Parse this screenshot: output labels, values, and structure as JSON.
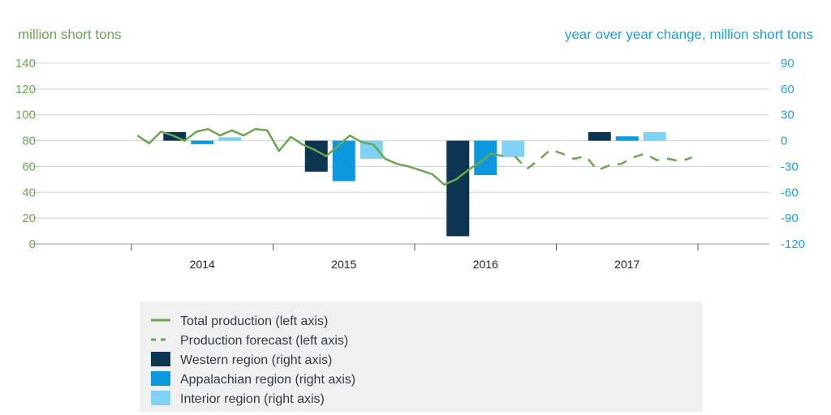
{
  "colors": {
    "left_axis": "#6aa84f",
    "right_axis": "#1aa3e0",
    "total": "#6aa84f",
    "forecast": "#6aa84f",
    "western": "#0b3550",
    "appalachian": "#0b98dc",
    "interior": "#7fd1f6",
    "grid": "#d0d0d0",
    "legend_bg": "#f0f0f0"
  },
  "chart_data": {
    "type": "bar+line",
    "left_axis": {
      "label": "million short tons",
      "ylim": [
        0,
        140
      ],
      "ticks": [
        0,
        20,
        40,
        60,
        80,
        100,
        120,
        140
      ]
    },
    "right_axis": {
      "label": "year over year change, million short tons",
      "ylim": [
        -120,
        90
      ],
      "ticks": [
        90,
        60,
        30,
        0,
        -30,
        -60,
        -90,
        -120
      ]
    },
    "x": {
      "categories": [
        "2014",
        "2015",
        "2016",
        "2017"
      ]
    },
    "bars": [
      {
        "name": "Western region (right axis)",
        "values": [
          10,
          -36,
          -111,
          10
        ]
      },
      {
        "name": "Appalachian region (right axis)",
        "values": [
          -4,
          -47,
          -40,
          5
        ]
      },
      {
        "name": "Interior region (right axis)",
        "values": [
          4,
          -21,
          -19,
          10
        ]
      }
    ],
    "lines": [
      {
        "name": "Total production (left axis)",
        "style": "solid",
        "start_month": "2014-01",
        "values": [
          84,
          78,
          87,
          84,
          80,
          87,
          89,
          84,
          88,
          84,
          89,
          88,
          72,
          83,
          77,
          73,
          68,
          76,
          84,
          79,
          77,
          66,
          62,
          60,
          57,
          54,
          46,
          50,
          57,
          63,
          70,
          68
        ]
      },
      {
        "name": "Production forecast (left axis)",
        "style": "dashed",
        "start_month": "2016-09",
        "values": [
          68,
          58,
          65,
          73,
          70,
          66,
          68,
          57,
          61,
          62,
          67,
          70,
          65,
          66,
          64,
          67
        ]
      }
    ],
    "grid": true,
    "legend": {
      "position": "bottom-center",
      "entries": [
        {
          "label": "Total production (left axis)",
          "symbol": "solid-line",
          "color_key": "total"
        },
        {
          "label": "Production forecast (left axis)",
          "symbol": "dashed-line",
          "color_key": "forecast"
        },
        {
          "label": "Western region (right axis)",
          "symbol": "square",
          "color_key": "western"
        },
        {
          "label": "Appalachian region (right axis)",
          "symbol": "square",
          "color_key": "appalachian"
        },
        {
          "label": "Interior region (right axis)",
          "symbol": "square",
          "color_key": "interior"
        }
      ]
    }
  }
}
